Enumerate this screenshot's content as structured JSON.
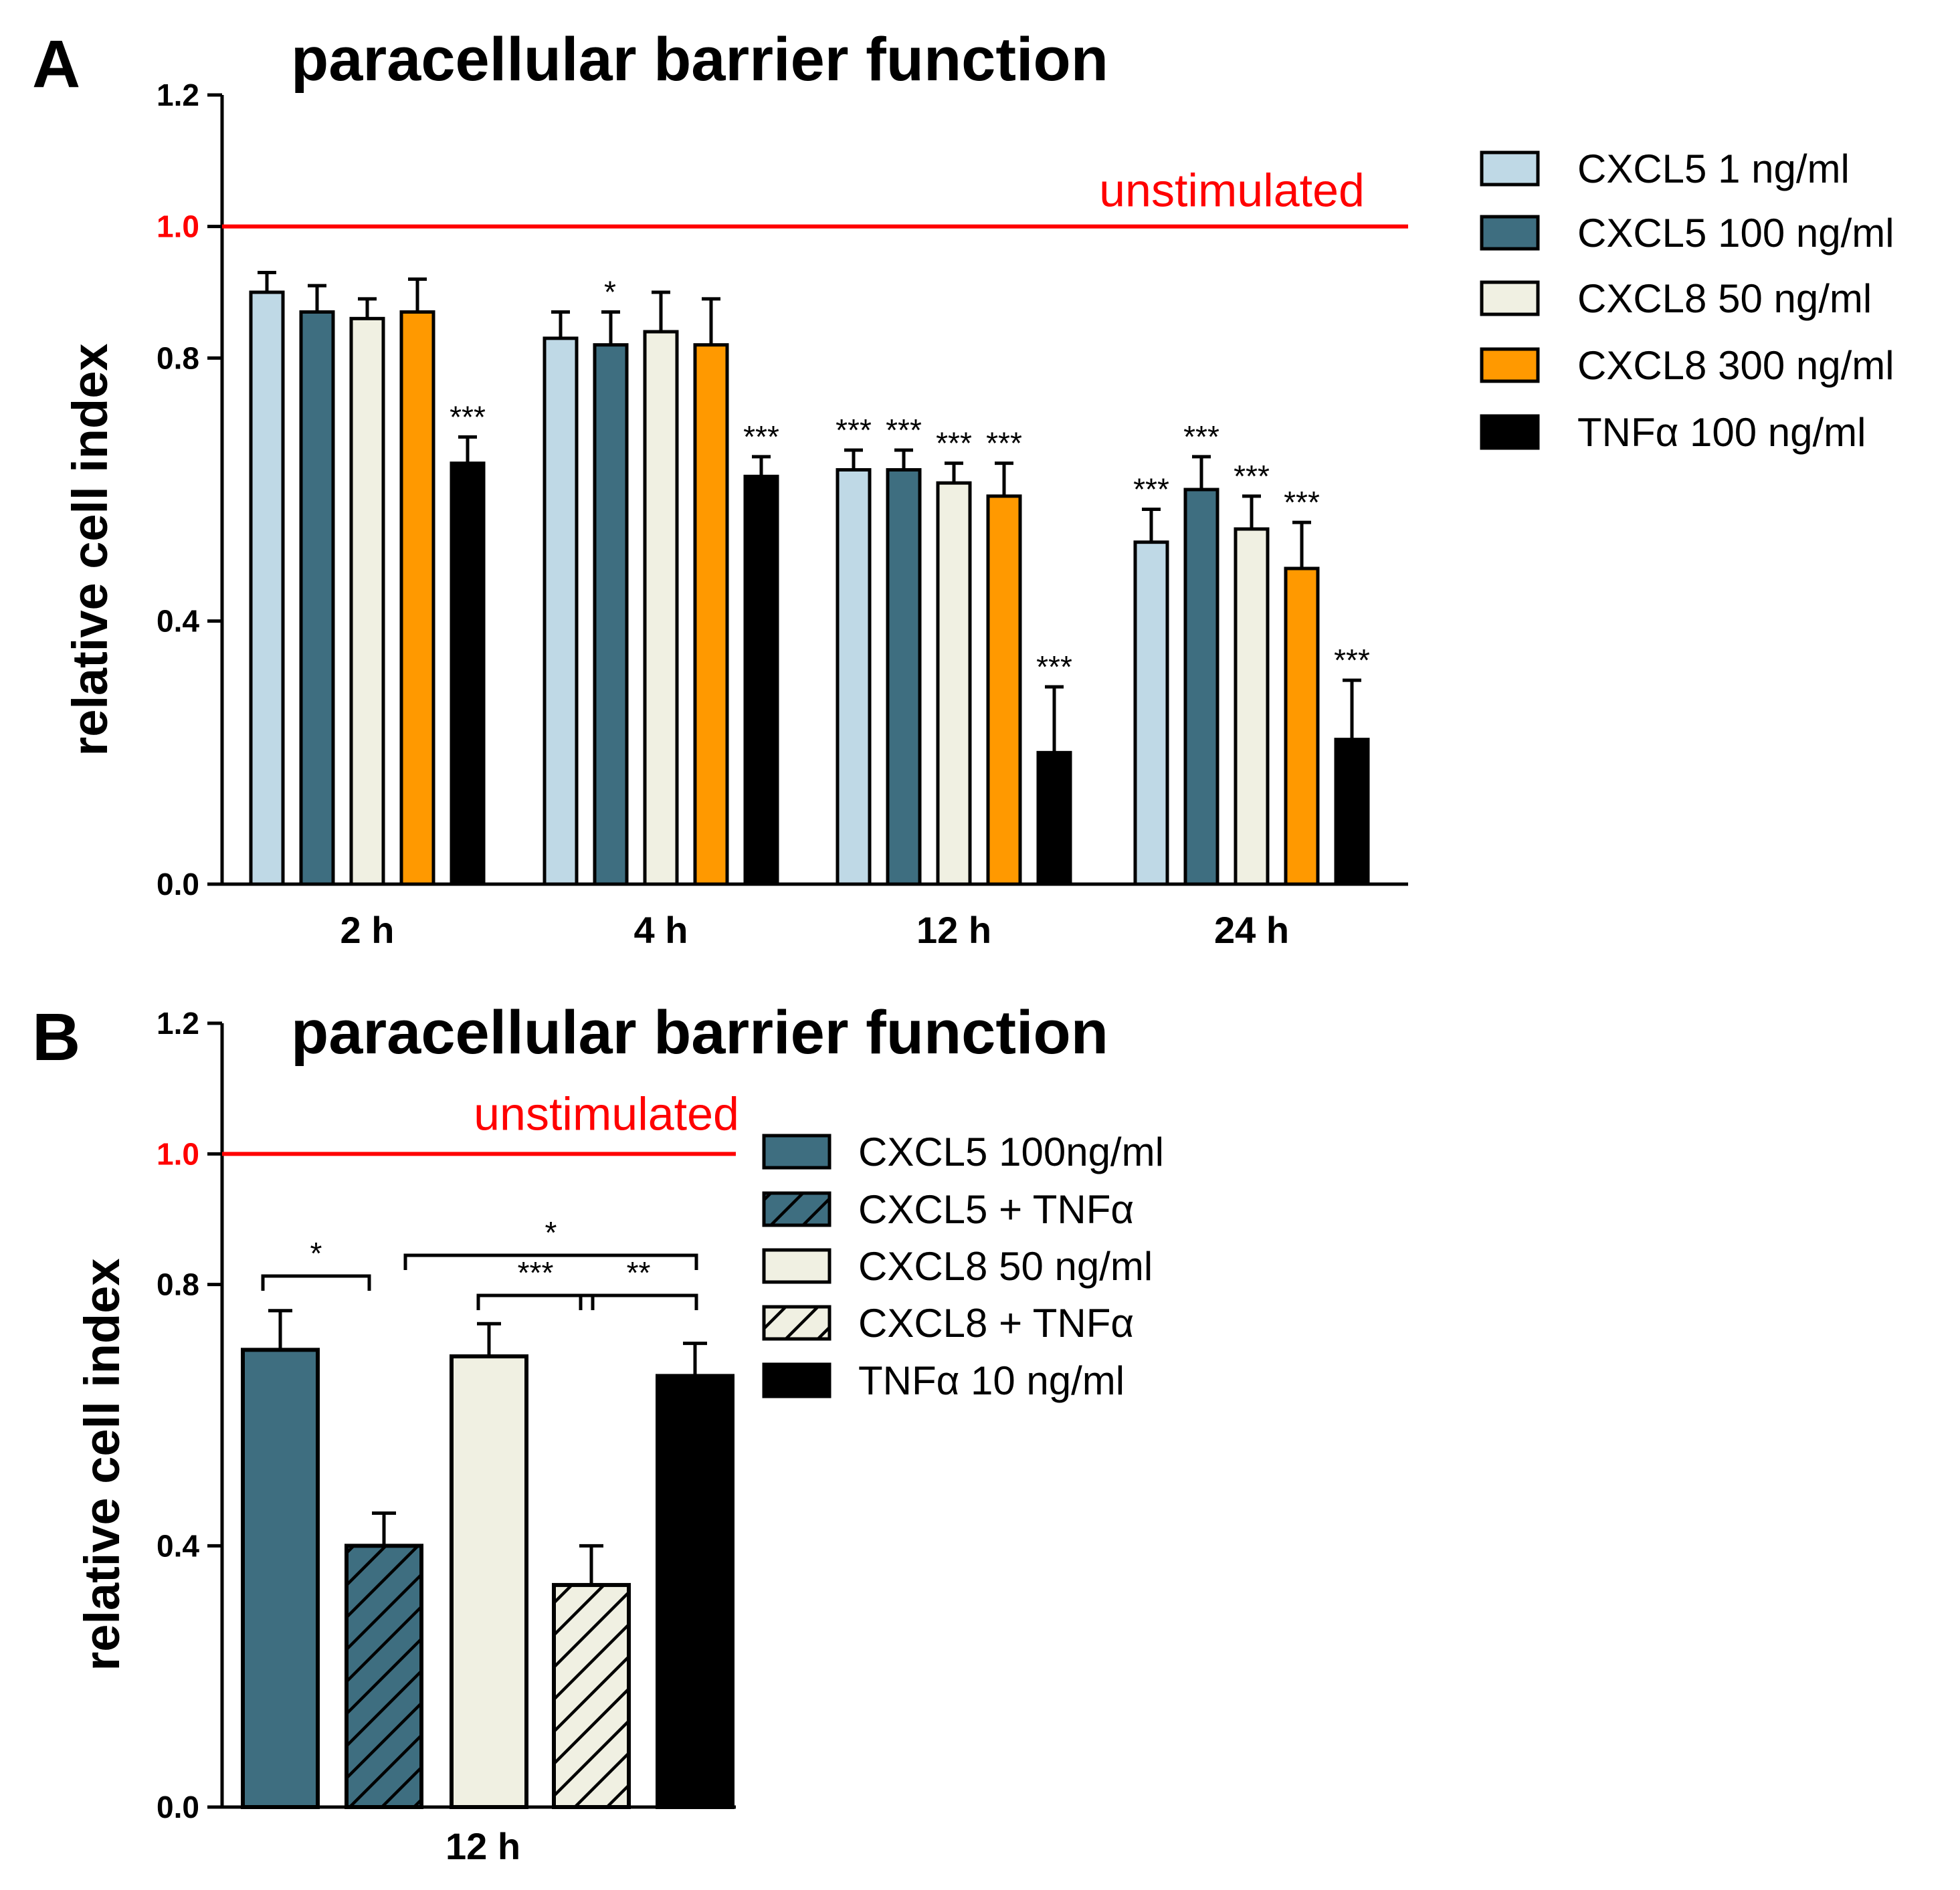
{
  "chart_data": [
    {
      "panel": "A",
      "type": "bar",
      "title": "paracellular barrier function",
      "xlabel": "",
      "ylabel": "relative cell index",
      "ylim": [
        0,
        1.2
      ],
      "yticks": [
        "0.0",
        "0.4",
        "0.8",
        "1.0",
        "1.2"
      ],
      "reference_line": {
        "value": 1.0,
        "label": "unstimulated",
        "color": "#ff0000"
      },
      "categories": [
        "2 h",
        "4 h",
        "12 h",
        "24 h"
      ],
      "series": [
        {
          "name": "CXCL5 1 ng/ml",
          "color": "#bfd9e6",
          "pattern": "none",
          "values": [
            0.9,
            0.83,
            0.63,
            0.52
          ],
          "errors": [
            0.03,
            0.04,
            0.03,
            0.05
          ],
          "significance": [
            "",
            "",
            "***",
            "***"
          ]
        },
        {
          "name": "CXCL5 100 ng/ml",
          "color": "#3e6e80",
          "pattern": "none",
          "values": [
            0.87,
            0.82,
            0.63,
            0.6
          ],
          "errors": [
            0.04,
            0.05,
            0.03,
            0.05
          ],
          "significance": [
            "",
            "*",
            "***",
            "***"
          ]
        },
        {
          "name": "CXCL8 50 ng/ml",
          "color": "#f0f0e2",
          "pattern": "none",
          "values": [
            0.86,
            0.84,
            0.61,
            0.54
          ],
          "errors": [
            0.03,
            0.06,
            0.03,
            0.05
          ],
          "significance": [
            "",
            "",
            "***",
            "***"
          ]
        },
        {
          "name": "CXCL8 300 ng/ml",
          "color": "#ff9900",
          "pattern": "none",
          "values": [
            0.87,
            0.82,
            0.59,
            0.48
          ],
          "errors": [
            0.05,
            0.07,
            0.05,
            0.07
          ],
          "significance": [
            "",
            "",
            "***",
            "***"
          ]
        },
        {
          "name": "TNFα 100 ng/ml",
          "color": "#000000",
          "pattern": "none",
          "values": [
            0.64,
            0.62,
            0.2,
            0.22
          ],
          "errors": [
            0.04,
            0.03,
            0.1,
            0.09
          ],
          "significance": [
            "***",
            "***",
            "***",
            "***"
          ]
        }
      ]
    },
    {
      "panel": "B",
      "type": "bar",
      "title": "paracellular barrier function",
      "xlabel": "",
      "ylabel": "relative cell index",
      "ylim": [
        0,
        1.2
      ],
      "yticks": [
        "0.0",
        "0.4",
        "0.8",
        "1.0",
        "1.2"
      ],
      "reference_line": {
        "value": 1.0,
        "label": "unstimulated",
        "color": "#ff0000"
      },
      "categories": [
        "12 h"
      ],
      "series": [
        {
          "name": "CXCL5 100ng/ml",
          "color": "#3e6e80",
          "pattern": "none",
          "values": [
            0.7
          ],
          "errors": [
            0.06
          ]
        },
        {
          "name": "CXCL5 + TNFα",
          "color": "#3e6e80",
          "pattern": "hatch",
          "values": [
            0.4
          ],
          "errors": [
            0.05
          ]
        },
        {
          "name": "CXCL8 50 ng/ml",
          "color": "#f0f0e2",
          "pattern": "none",
          "values": [
            0.69
          ],
          "errors": [
            0.05
          ]
        },
        {
          "name": "CXCL8 + TNFα",
          "color": "#f0f0e2",
          "pattern": "hatch",
          "values": [
            0.34
          ],
          "errors": [
            0.06
          ]
        },
        {
          "name": "TNFα 10 ng/ml",
          "color": "#000000",
          "pattern": "none",
          "values": [
            0.66
          ],
          "errors": [
            0.05
          ]
        }
      ],
      "comparisons": [
        {
          "from": 0,
          "to": 1,
          "label": "*"
        },
        {
          "from": 1,
          "to": 4,
          "label": "*"
        },
        {
          "from": 2,
          "to": 3,
          "label": "***"
        },
        {
          "from": 3,
          "to": 4,
          "label": "**"
        }
      ]
    }
  ]
}
